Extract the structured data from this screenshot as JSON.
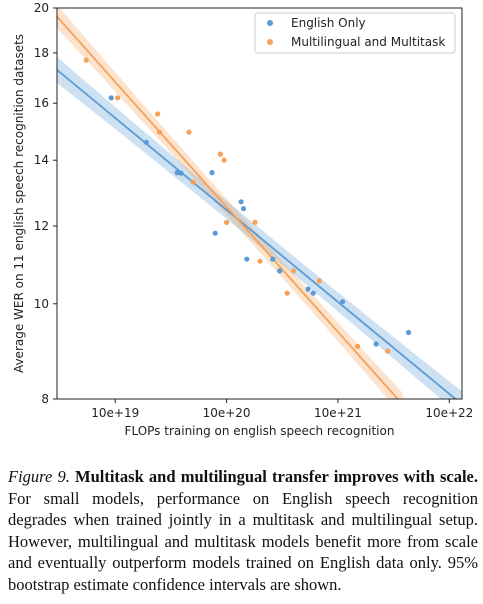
{
  "chart_data": {
    "type": "scatter",
    "xscale": "log",
    "yscale": "log",
    "xlabel": "FLOPs training on english speech recognition",
    "ylabel": "Average WER on 11 english speech recognition datasets",
    "xlim": [
      3e+18,
      1.3e+22
    ],
    "ylim": [
      8,
      20
    ],
    "xticks": [
      1e+19,
      1e+20,
      1e+21,
      1e+22
    ],
    "xtick_labels": [
      "10e+19",
      "10e+20",
      "10e+21",
      "10e+22"
    ],
    "yticks": [
      8,
      10,
      12,
      14,
      16,
      18,
      20
    ],
    "ytick_labels": [
      "8",
      "10",
      "12",
      "14",
      "16",
      "18",
      "20"
    ],
    "grid": false,
    "legend": "top-right",
    "series": [
      {
        "name": "English Only",
        "color": "#5b9bd5",
        "points": [
          [
            9.2e+18,
            16.2
          ],
          [
            1.9e+19,
            14.6
          ],
          [
            3.6e+19,
            13.6
          ],
          [
            3.9e+19,
            13.58
          ],
          [
            7.4e+19,
            13.6
          ],
          [
            7.9e+19,
            11.8
          ],
          [
            1.35e+20,
            12.7
          ],
          [
            1.42e+20,
            12.5
          ],
          [
            1.52e+20,
            11.1
          ],
          [
            2.6e+20,
            11.1
          ],
          [
            3e+20,
            10.8
          ],
          [
            5.4e+20,
            10.35
          ],
          [
            6e+20,
            10.25
          ],
          [
            1.1e+21,
            10.05
          ],
          [
            2.2e+21,
            9.1
          ],
          [
            4.3e+21,
            9.35
          ]
        ],
        "fit": {
          "x": [
            3e+18,
            1.3e+22
          ],
          "y": [
            17.3,
            7.9
          ]
        }
      },
      {
        "name": "Multilingual and Multitask",
        "color": "#f5a15a",
        "points": [
          [
            5.5e+18,
            17.7
          ],
          [
            1.05e+19,
            16.2
          ],
          [
            2.4e+19,
            15.6
          ],
          [
            2.5e+19,
            14.95
          ],
          [
            4.6e+19,
            14.95
          ],
          [
            5e+19,
            13.3
          ],
          [
            8.8e+19,
            14.2
          ],
          [
            9.5e+19,
            14.0
          ],
          [
            1e+20,
            12.1
          ],
          [
            1.8e+20,
            12.1
          ],
          [
            2e+20,
            11.05
          ],
          [
            3.5e+20,
            10.25
          ],
          [
            4e+20,
            10.8
          ],
          [
            6.8e+20,
            10.55
          ],
          [
            1.5e+21,
            9.05
          ],
          [
            2.8e+21,
            8.95
          ]
        ],
        "fit": {
          "x": [
            3e+18,
            3.8e+21
          ],
          "y": [
            19.6,
            7.9
          ]
        }
      }
    ],
    "confidence_band": "95% bootstrap"
  },
  "caption": {
    "figure_label": "Figure 9.",
    "title": "Multitask and multilingual transfer improves with scale.",
    "body": "For small models, performance on English speech recognition degrades when trained jointly in a multitask and multilingual setup. However, multilingual and multitask models benefit more from scale and eventually outperform models trained on English data only. 95% bootstrap estimate confidence intervals are shown."
  }
}
